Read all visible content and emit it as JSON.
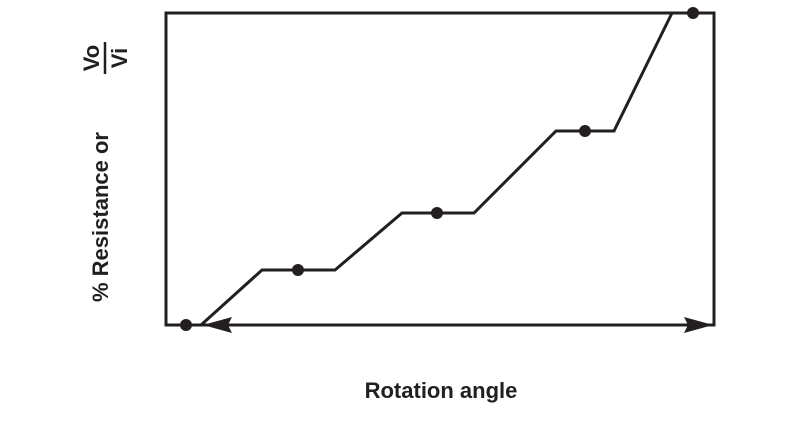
{
  "y_label": "% Resistance or",
  "y_label_fraction": {
    "numerator": "Vo",
    "denominator": "Vi"
  },
  "x_label": "Rotation angle"
}
